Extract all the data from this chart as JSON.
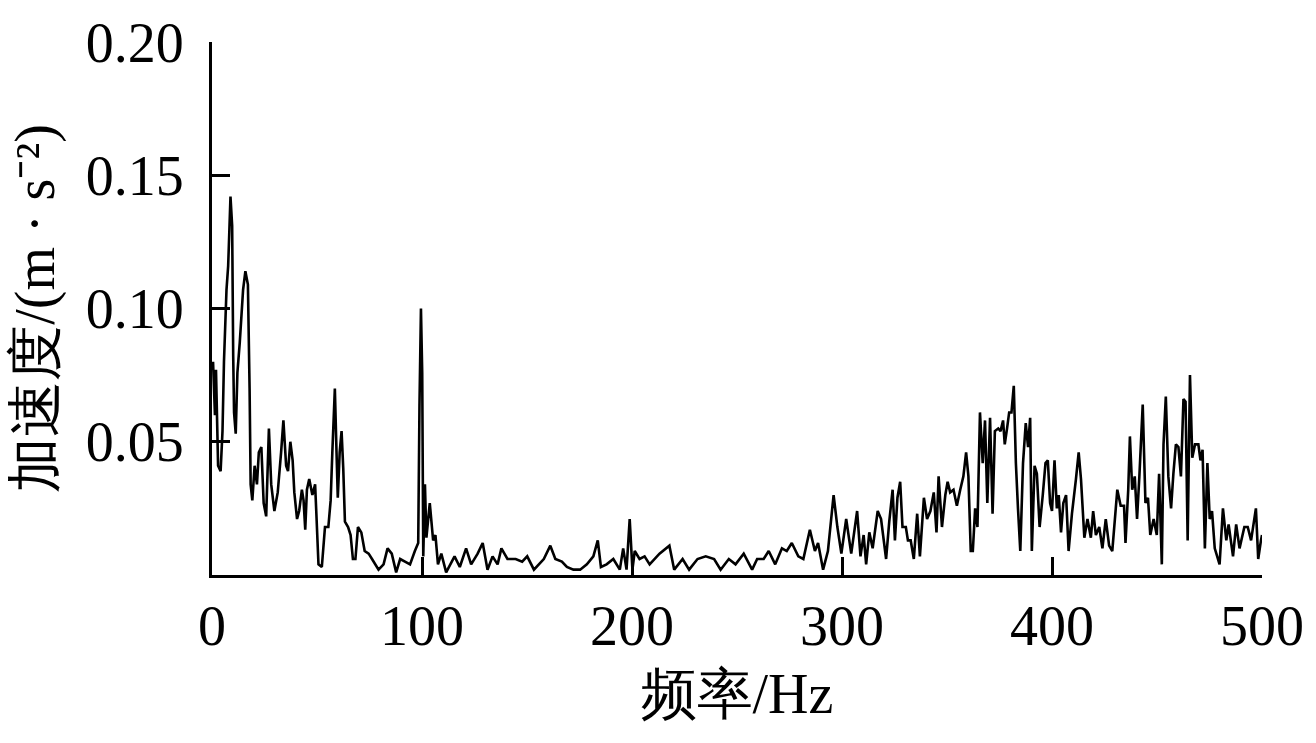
{
  "chart_data": {
    "type": "line",
    "xlabel": "频率/Hz",
    "ylabel": "加速度/(m · s⁻²)",
    "xlim": [
      0,
      500
    ],
    "ylim": [
      0,
      0.2
    ],
    "xticks": [
      0,
      100,
      200,
      300,
      400,
      500
    ],
    "yticks": [
      {
        "value": 0.05,
        "label": "0.05"
      },
      {
        "value": 0.1,
        "label": "0.10"
      },
      {
        "value": 0.15,
        "label": "0.15"
      },
      {
        "value": 0.2,
        "label": "0.20"
      }
    ],
    "line_style": "solid",
    "x": [
      0.5,
      1.4,
      1.9,
      2.9,
      4.1,
      5.0,
      5.7,
      6.9,
      7.7,
      8.8,
      9.6,
      10.1,
      10.5,
      11.3,
      12.1,
      13.2,
      14.8,
      15.9,
      17.1,
      17.9,
      18.4,
      19.2,
      20.3,
      21.4,
      22.3,
      23.5,
      24.6,
      25.8,
      27.1,
      28.2,
      29.7,
      31.3,
      32.9,
      34.0,
      35.3,
      36.2,
      37.3,
      38.4,
      39.2,
      40.5,
      41.5,
      42.8,
      43.6,
      44.4,
      45.2,
      46.3,
      47.8,
      49.1,
      49.7,
      50.7,
      52.3,
      53.8,
      55.4,
      56.5,
      57.3,
      57.9,
      58.5,
      59.3,
      59.9,
      60.8,
      61.7,
      62.5,
      63.3,
      64.8,
      66.0,
      67.1,
      68.3,
      69.5,
      71.1,
      72.7,
      74.6,
      76.2,
      79.3,
      81.7,
      83.6,
      85.6,
      87.7,
      89.6,
      91.9,
      94.3,
      96.6,
      98.2,
      98.8,
      99.5,
      100.1,
      100.6,
      101.4,
      102.1,
      103.7,
      105.3,
      106.4,
      107.6,
      109.2,
      111.5,
      115.5,
      118.0,
      121.0,
      123.4,
      126.5,
      128.9,
      131.2,
      133.6,
      136.0,
      137.8,
      140.7,
      144.6,
      147.7,
      150.1,
      153.3,
      158.0,
      161.1,
      163.5,
      166.6,
      169.0,
      172.1,
      175.3,
      178.5,
      181.6,
      183.7,
      185.2,
      187.9,
      191.1,
      194.2,
      195.8,
      197.4,
      198.9,
      200.2,
      201.3,
      203.6,
      206.0,
      208.4,
      213.1,
      217.8,
      220.1,
      224.1,
      227.2,
      231.2,
      235.1,
      239.1,
      242.2,
      246.1,
      249.3,
      253.2,
      257.2,
      259.6,
      262.7,
      265.1,
      268.2,
      271.4,
      273.7,
      276.1,
      279.2,
      281.6,
      284.7,
      287.1,
      288.6,
      291.0,
      293.3,
      296.0,
      297.8,
      299.7,
      302.0,
      304.4,
      307.2,
      308.8,
      310.3,
      311.5,
      313.0,
      314.6,
      317.0,
      318.6,
      321.0,
      322.5,
      324.1,
      325.2,
      326.4,
      327.7,
      328.8,
      330.4,
      331.4,
      332.7,
      334.2,
      335.8,
      337.1,
      339.0,
      340.5,
      342.1,
      343.7,
      345.0,
      346.0,
      347.6,
      349.2,
      350.3,
      351.5,
      353.1,
      354.7,
      356.3,
      357.8,
      359.1,
      360.2,
      361.3,
      362.3,
      363.4,
      364.5,
      365.7,
      367.0,
      368.1,
      369.2,
      370.5,
      371.7,
      372.8,
      374.4,
      375.5,
      376.7,
      377.5,
      378.6,
      379.6,
      380.7,
      381.8,
      382.8,
      383.8,
      384.9,
      386.2,
      387.5,
      388.6,
      389.6,
      390.4,
      391.7,
      392.8,
      394.1,
      395.6,
      396.9,
      398.0,
      399.1,
      400.0,
      401.2,
      402.3,
      403.2,
      404.3,
      405.4,
      406.7,
      407.9,
      409.5,
      411.4,
      412.7,
      413.8,
      415.4,
      416.9,
      418.5,
      419.6,
      420.9,
      422.5,
      424.0,
      425.6,
      427.2,
      428.7,
      431.1,
      432.7,
      434.3,
      435.0,
      436.3,
      437.1,
      438.2,
      439.4,
      440.5,
      441.6,
      443.2,
      444.5,
      445.7,
      446.8,
      448.4,
      449.9,
      451.0,
      452.3,
      453.1,
      454.2,
      455.4,
      456.7,
      457.8,
      459.0,
      460.2,
      461.4,
      462.6,
      463.6,
      464.6,
      465.7,
      466.8,
      468.1,
      469.7,
      470.7,
      471.7,
      472.8,
      474.0,
      475.1,
      476.2,
      477.5,
      479.8,
      481.4,
      483.0,
      484.1,
      486.2,
      487.7,
      489.3,
      491.6,
      493.2,
      494.8,
      497.1,
      498.2,
      499.5,
      500.0
    ],
    "series": [
      {
        "color": "#000000",
        "values": [
          0.08,
          0.06,
          0.077,
          0.041,
          0.039,
          0.054,
          0.08,
          0.107,
          0.116,
          0.142,
          0.131,
          0.082,
          0.061,
          0.053,
          0.076,
          0.087,
          0.107,
          0.114,
          0.109,
          0.07,
          0.034,
          0.028,
          0.041,
          0.034,
          0.046,
          0.048,
          0.027,
          0.022,
          0.055,
          0.034,
          0.024,
          0.031,
          0.046,
          0.058,
          0.041,
          0.039,
          0.05,
          0.043,
          0.031,
          0.021,
          0.024,
          0.032,
          0.028,
          0.017,
          0.032,
          0.036,
          0.03,
          0.034,
          0.023,
          0.004,
          0.003,
          0.018,
          0.018,
          0.028,
          0.046,
          0.058,
          0.07,
          0.046,
          0.029,
          0.046,
          0.054,
          0.04,
          0.02,
          0.018,
          0.015,
          0.006,
          0.006,
          0.018,
          0.016,
          0.009,
          0.008,
          0.006,
          0.002,
          0.004,
          0.01,
          0.008,
          0.001,
          0.006,
          0.005,
          0.004,
          0.009,
          0.012,
          0.064,
          0.1,
          0.076,
          0.007,
          0.034,
          0.014,
          0.027,
          0.013,
          0.015,
          0.004,
          0.008,
          0.001,
          0.007,
          0.003,
          0.01,
          0.004,
          0.008,
          0.012,
          0.002,
          0.007,
          0.004,
          0.01,
          0.006,
          0.006,
          0.005,
          0.007,
          0.002,
          0.006,
          0.011,
          0.006,
          0.005,
          0.003,
          0.002,
          0.002,
          0.004,
          0.007,
          0.013,
          0.003,
          0.004,
          0.006,
          0.002,
          0.01,
          0.002,
          0.021,
          0.002,
          0.009,
          0.006,
          0.007,
          0.004,
          0.008,
          0.011,
          0.002,
          0.006,
          0.002,
          0.006,
          0.007,
          0.006,
          0.002,
          0.006,
          0.004,
          0.008,
          0.002,
          0.006,
          0.006,
          0.009,
          0.004,
          0.01,
          0.009,
          0.012,
          0.007,
          0.006,
          0.017,
          0.009,
          0.012,
          0.002,
          0.009,
          0.03,
          0.018,
          0.008,
          0.021,
          0.008,
          0.024,
          0.007,
          0.015,
          0.004,
          0.016,
          0.01,
          0.024,
          0.021,
          0.006,
          0.02,
          0.032,
          0.013,
          0.029,
          0.035,
          0.018,
          0.018,
          0.013,
          0.013,
          0.006,
          0.023,
          0.007,
          0.029,
          0.021,
          0.024,
          0.031,
          0.016,
          0.037,
          0.018,
          0.03,
          0.035,
          0.031,
          0.032,
          0.026,
          0.032,
          0.037,
          0.046,
          0.037,
          0.009,
          0.009,
          0.025,
          0.018,
          0.061,
          0.042,
          0.058,
          0.027,
          0.059,
          0.023,
          0.054,
          0.055,
          0.054,
          0.058,
          0.049,
          0.055,
          0.061,
          0.061,
          0.071,
          0.042,
          0.025,
          0.009,
          0.042,
          0.057,
          0.048,
          0.059,
          0.009,
          0.041,
          0.038,
          0.018,
          0.03,
          0.042,
          0.043,
          0.027,
          0.024,
          0.043,
          0.025,
          0.03,
          0.016,
          0.027,
          0.03,
          0.009,
          0.023,
          0.036,
          0.046,
          0.036,
          0.014,
          0.021,
          0.014,
          0.024,
          0.015,
          0.018,
          0.01,
          0.021,
          0.011,
          0.009,
          0.032,
          0.026,
          0.026,
          0.012,
          0.032,
          0.052,
          0.032,
          0.037,
          0.021,
          0.037,
          0.064,
          0.027,
          0.029,
          0.015,
          0.021,
          0.015,
          0.038,
          0.004,
          0.049,
          0.067,
          0.037,
          0.025,
          0.038,
          0.049,
          0.048,
          0.037,
          0.066,
          0.065,
          0.013,
          0.075,
          0.044,
          0.049,
          0.049,
          0.043,
          0.047,
          0.01,
          0.042,
          0.021,
          0.024,
          0.01,
          0.004,
          0.025,
          0.013,
          0.019,
          0.007,
          0.019,
          0.01,
          0.018,
          0.018,
          0.013,
          0.025,
          0.006,
          0.013,
          0.015
        ]
      }
    ]
  }
}
